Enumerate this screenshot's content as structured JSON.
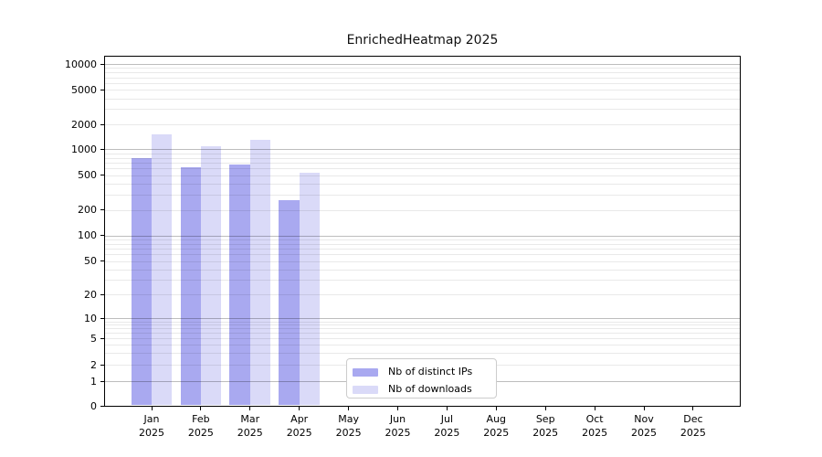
{
  "title": "EnrichedHeatmap 2025",
  "chart_data": {
    "type": "bar",
    "title": "EnrichedHeatmap 2025",
    "x_axis": {
      "categories": [
        "Jan",
        "Feb",
        "Mar",
        "Apr",
        "May",
        "Jun",
        "Jul",
        "Aug",
        "Sep",
        "Oct",
        "Nov",
        "Dec"
      ],
      "year_suffix": "2025"
    },
    "y_axis": {
      "scale": "symlog",
      "tick_values": [
        0,
        1,
        2,
        5,
        10,
        20,
        50,
        100,
        200,
        500,
        1000,
        2000,
        5000,
        10000
      ],
      "tick_labels": [
        "0",
        "1",
        "2",
        "5",
        "10",
        "20",
        "50",
        "100",
        "200",
        "500",
        "1000",
        "2000",
        "5000",
        "10000"
      ],
      "range": [
        0,
        12000
      ]
    },
    "series": [
      {
        "name": "Nb of distinct IPs",
        "color": "#a9a9f0",
        "values": [
          790,
          615,
          675,
          260,
          null,
          null,
          null,
          null,
          null,
          null,
          null,
          null
        ]
      },
      {
        "name": "Nb of downloads",
        "color": "#dadaf8",
        "values": [
          1520,
          1100,
          1310,
          530,
          null,
          null,
          null,
          null,
          null,
          null,
          null,
          null
        ]
      }
    ],
    "legend_position": "lower center",
    "grid": true
  },
  "colors": {
    "grid_major": "#bdbdbd",
    "grid_minor": "#e8e8e8",
    "spine": "#000000",
    "background": "#ffffff"
  }
}
